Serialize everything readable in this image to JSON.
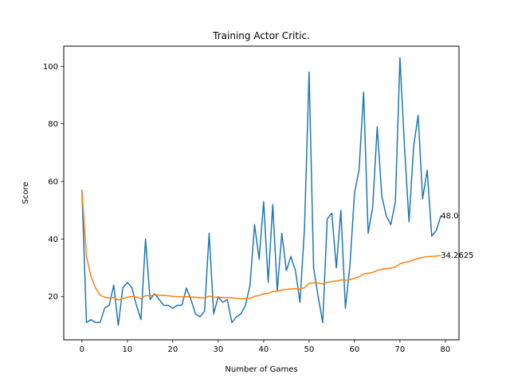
{
  "chart_data": {
    "type": "line",
    "title": "Training Actor Critic.",
    "xlabel": "Number of Games",
    "ylabel": "Score",
    "xlim": [
      -4,
      83
    ],
    "ylim": [
      5,
      107
    ],
    "xticks": [
      0,
      10,
      20,
      30,
      40,
      50,
      60,
      70,
      80
    ],
    "yticks": [
      20,
      40,
      60,
      80,
      100
    ],
    "grid": false,
    "series": [
      {
        "color": "#1f77b4",
        "values": [
          57,
          11,
          12,
          11,
          11,
          16,
          17,
          24,
          10,
          23,
          25,
          23,
          17,
          12,
          40,
          19,
          21,
          19,
          17,
          17,
          16,
          17,
          17,
          23,
          19,
          14,
          13,
          15,
          42,
          14,
          20,
          18,
          19,
          11,
          13,
          14,
          17,
          24,
          45,
          33,
          53,
          25,
          52,
          22,
          42,
          29,
          34,
          29,
          18,
          44,
          98,
          30,
          20,
          11,
          47,
          49,
          30,
          50,
          16,
          31,
          56,
          64,
          91,
          42,
          51,
          79,
          55,
          48,
          45,
          53,
          103,
          72,
          46,
          72,
          83,
          54,
          64,
          41,
          43,
          48
        ]
      },
      {
        "color": "#ff7f0e",
        "values": [
          57,
          34,
          27,
          23,
          20.5,
          19.8,
          19.5,
          19.7,
          18.8,
          19.4,
          19.8,
          20.1,
          19.9,
          19.3,
          20.4,
          20.3,
          20.6,
          20.5,
          20.4,
          20.3,
          20.1,
          20.0,
          19.9,
          20.0,
          19.9,
          19.8,
          19.6,
          19.5,
          20.2,
          19.8,
          19.8,
          19.7,
          19.7,
          19.6,
          19.4,
          19.3,
          19.3,
          19.4,
          20.1,
          20.4,
          21.0,
          21.1,
          21.8,
          21.9,
          22.3,
          22.5,
          22.7,
          22.8,
          22.7,
          23.1,
          24.6,
          24.8,
          24.7,
          24.4,
          24.9,
          25.3,
          25.4,
          25.8,
          25.7,
          25.9,
          26.4,
          26.9,
          27.9,
          28.1,
          28.4,
          29.1,
          29.5,
          29.7,
          29.9,
          30.3,
          31.4,
          31.9,
          32.1,
          32.8,
          33.3,
          33.6,
          33.9,
          34.0,
          34.1,
          34.2625
        ]
      }
    ],
    "annotations": [
      {
        "x": 79,
        "y": 48.0,
        "text": "48.0"
      },
      {
        "x": 79,
        "y": 34.2625,
        "text": "34.2625"
      }
    ]
  }
}
